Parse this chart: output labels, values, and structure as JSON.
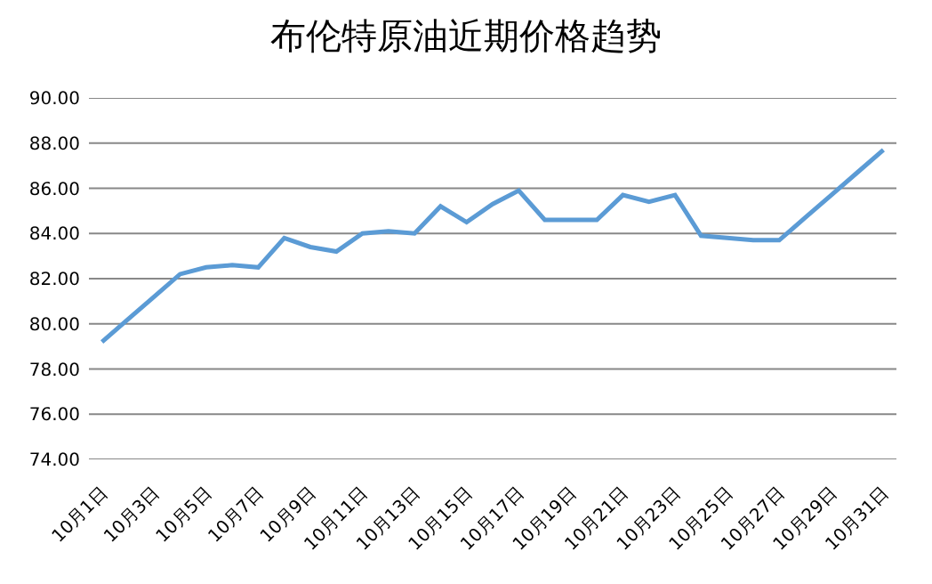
{
  "chart_data": {
    "type": "line",
    "title": "布伦特原油近期价格趋势",
    "categories": [
      "10月1日",
      null,
      "10月3日",
      null,
      "10月5日",
      null,
      "10月7日",
      null,
      "10月9日",
      null,
      "10月11日",
      null,
      "10月13日",
      null,
      "10月15日",
      null,
      "10月17日",
      null,
      "10月19日",
      null,
      "10月21日",
      null,
      "10月23日",
      null,
      "10月25日",
      null,
      "10月27日",
      null,
      "10月29日",
      null,
      "10月31日"
    ],
    "series": [
      {
        "color": "#5b9bd5",
        "values": [
          79.2,
          80.2,
          81.2,
          82.2,
          82.5,
          82.6,
          82.5,
          83.8,
          83.4,
          83.2,
          84.0,
          84.1,
          84.0,
          85.2,
          84.5,
          85.3,
          85.9,
          84.6,
          84.6,
          84.6,
          85.7,
          85.4,
          85.7,
          83.9,
          83.8,
          83.7,
          83.7,
          84.7,
          85.7,
          86.7,
          87.7
        ]
      }
    ],
    "ylim": [
      74,
      90
    ],
    "yticks": [
      {
        "value": 74,
        "label": "74.00"
      },
      {
        "value": 76,
        "label": "76.00"
      },
      {
        "value": 78,
        "label": "78.00"
      },
      {
        "value": 80,
        "label": "80.00"
      },
      {
        "value": 82,
        "label": "82.00"
      },
      {
        "value": 84,
        "label": "84.00"
      },
      {
        "value": 86,
        "label": "86.00"
      },
      {
        "value": 88,
        "label": "88.00"
      },
      {
        "value": 90,
        "label": "90.00"
      }
    ],
    "grid": "y",
    "legend": false,
    "marker": "none",
    "line_style": "solid"
  }
}
